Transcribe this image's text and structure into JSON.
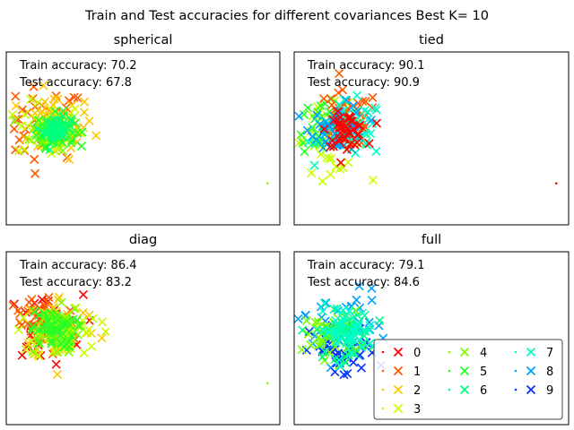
{
  "figure_title": "Train and Test accuracies for different covariances Best K= 10",
  "legend_labels": [
    "0",
    "1",
    "2",
    "3",
    "4",
    "5",
    "6",
    "7",
    "8",
    "9"
  ],
  "class_colors": [
    "#ff0000",
    "#ff5a00",
    "#ffc800",
    "#c8ff00",
    "#7dff00",
    "#28ff28",
    "#00ff7d",
    "#00ffc8",
    "#00a0ff",
    "#0032ff"
  ],
  "chart_data": [
    {
      "type": "scatter",
      "title": "spherical",
      "train_label": "Train accuracy: 70.2",
      "test_label": "Test accuracy: 67.8",
      "xlim": [
        0,
        1
      ],
      "ylim": [
        0,
        1
      ],
      "clusters": [
        {
          "class": 1,
          "cx": 0.13,
          "cy": 0.58,
          "sd": 0.08
        },
        {
          "class": 2,
          "cx": 0.18,
          "cy": 0.57,
          "sd": 0.07
        },
        {
          "class": 3,
          "cx": 0.16,
          "cy": 0.55,
          "sd": 0.06
        },
        {
          "class": 4,
          "cx": 0.17,
          "cy": 0.54,
          "sd": 0.04
        },
        {
          "class": 5,
          "cx": 0.18,
          "cy": 0.55,
          "sd": 0.035
        },
        {
          "class": 6,
          "cx": 0.185,
          "cy": 0.55,
          "sd": 0.025
        }
      ],
      "extra_dot": {
        "x": 0.955,
        "y": 0.24
      }
    },
    {
      "type": "scatter",
      "title": "tied",
      "train_label": "Train accuracy: 90.1",
      "test_label": "Test accuracy: 90.9",
      "xlim": [
        0,
        1
      ],
      "ylim": [
        0,
        1
      ],
      "clusters": [
        {
          "class": 3,
          "cx": 0.13,
          "cy": 0.5,
          "sd": 0.07
        },
        {
          "class": 5,
          "cx": 0.12,
          "cy": 0.57,
          "sd": 0.06
        },
        {
          "class": 1,
          "cx": 0.19,
          "cy": 0.61,
          "sd": 0.06
        },
        {
          "class": 7,
          "cx": 0.21,
          "cy": 0.55,
          "sd": 0.06
        },
        {
          "class": 8,
          "cx": 0.16,
          "cy": 0.56,
          "sd": 0.05
        },
        {
          "class": 0,
          "cx": 0.19,
          "cy": 0.55,
          "sd": 0.035
        }
      ],
      "extra_dot": {
        "x": 0.955,
        "y": 0.24
      }
    },
    {
      "type": "scatter",
      "title": "diag",
      "train_label": "Train accuracy: 86.4",
      "test_label": "Test accuracy: 83.2",
      "xlim": [
        0,
        1
      ],
      "ylim": [
        0,
        1
      ],
      "clusters": [
        {
          "class": 0,
          "cx": 0.14,
          "cy": 0.56,
          "sd": 0.07
        },
        {
          "class": 1,
          "cx": 0.12,
          "cy": 0.58,
          "sd": 0.07
        },
        {
          "class": 2,
          "cx": 0.2,
          "cy": 0.56,
          "sd": 0.07
        },
        {
          "class": 3,
          "cx": 0.22,
          "cy": 0.53,
          "sd": 0.06
        },
        {
          "class": 4,
          "cx": 0.17,
          "cy": 0.55,
          "sd": 0.05
        },
        {
          "class": 5,
          "cx": 0.17,
          "cy": 0.55,
          "sd": 0.04
        }
      ],
      "extra_dot": {
        "x": 0.955,
        "y": 0.24
      }
    },
    {
      "type": "scatter",
      "title": "full",
      "train_label": "Train accuracy: 79.1",
      "test_label": "Test accuracy: 84.6",
      "xlim": [
        0,
        1
      ],
      "ylim": [
        0,
        1
      ],
      "clusters": [
        {
          "class": 8,
          "cx": 0.17,
          "cy": 0.57,
          "sd": 0.08
        },
        {
          "class": 9,
          "cx": 0.18,
          "cy": 0.42,
          "sd": 0.06
        },
        {
          "class": 4,
          "cx": 0.14,
          "cy": 0.52,
          "sd": 0.05
        },
        {
          "class": 6,
          "cx": 0.18,
          "cy": 0.52,
          "sd": 0.05
        },
        {
          "class": 7,
          "cx": 0.19,
          "cy": 0.55,
          "sd": 0.05
        }
      ],
      "legend": "lower-right"
    }
  ]
}
